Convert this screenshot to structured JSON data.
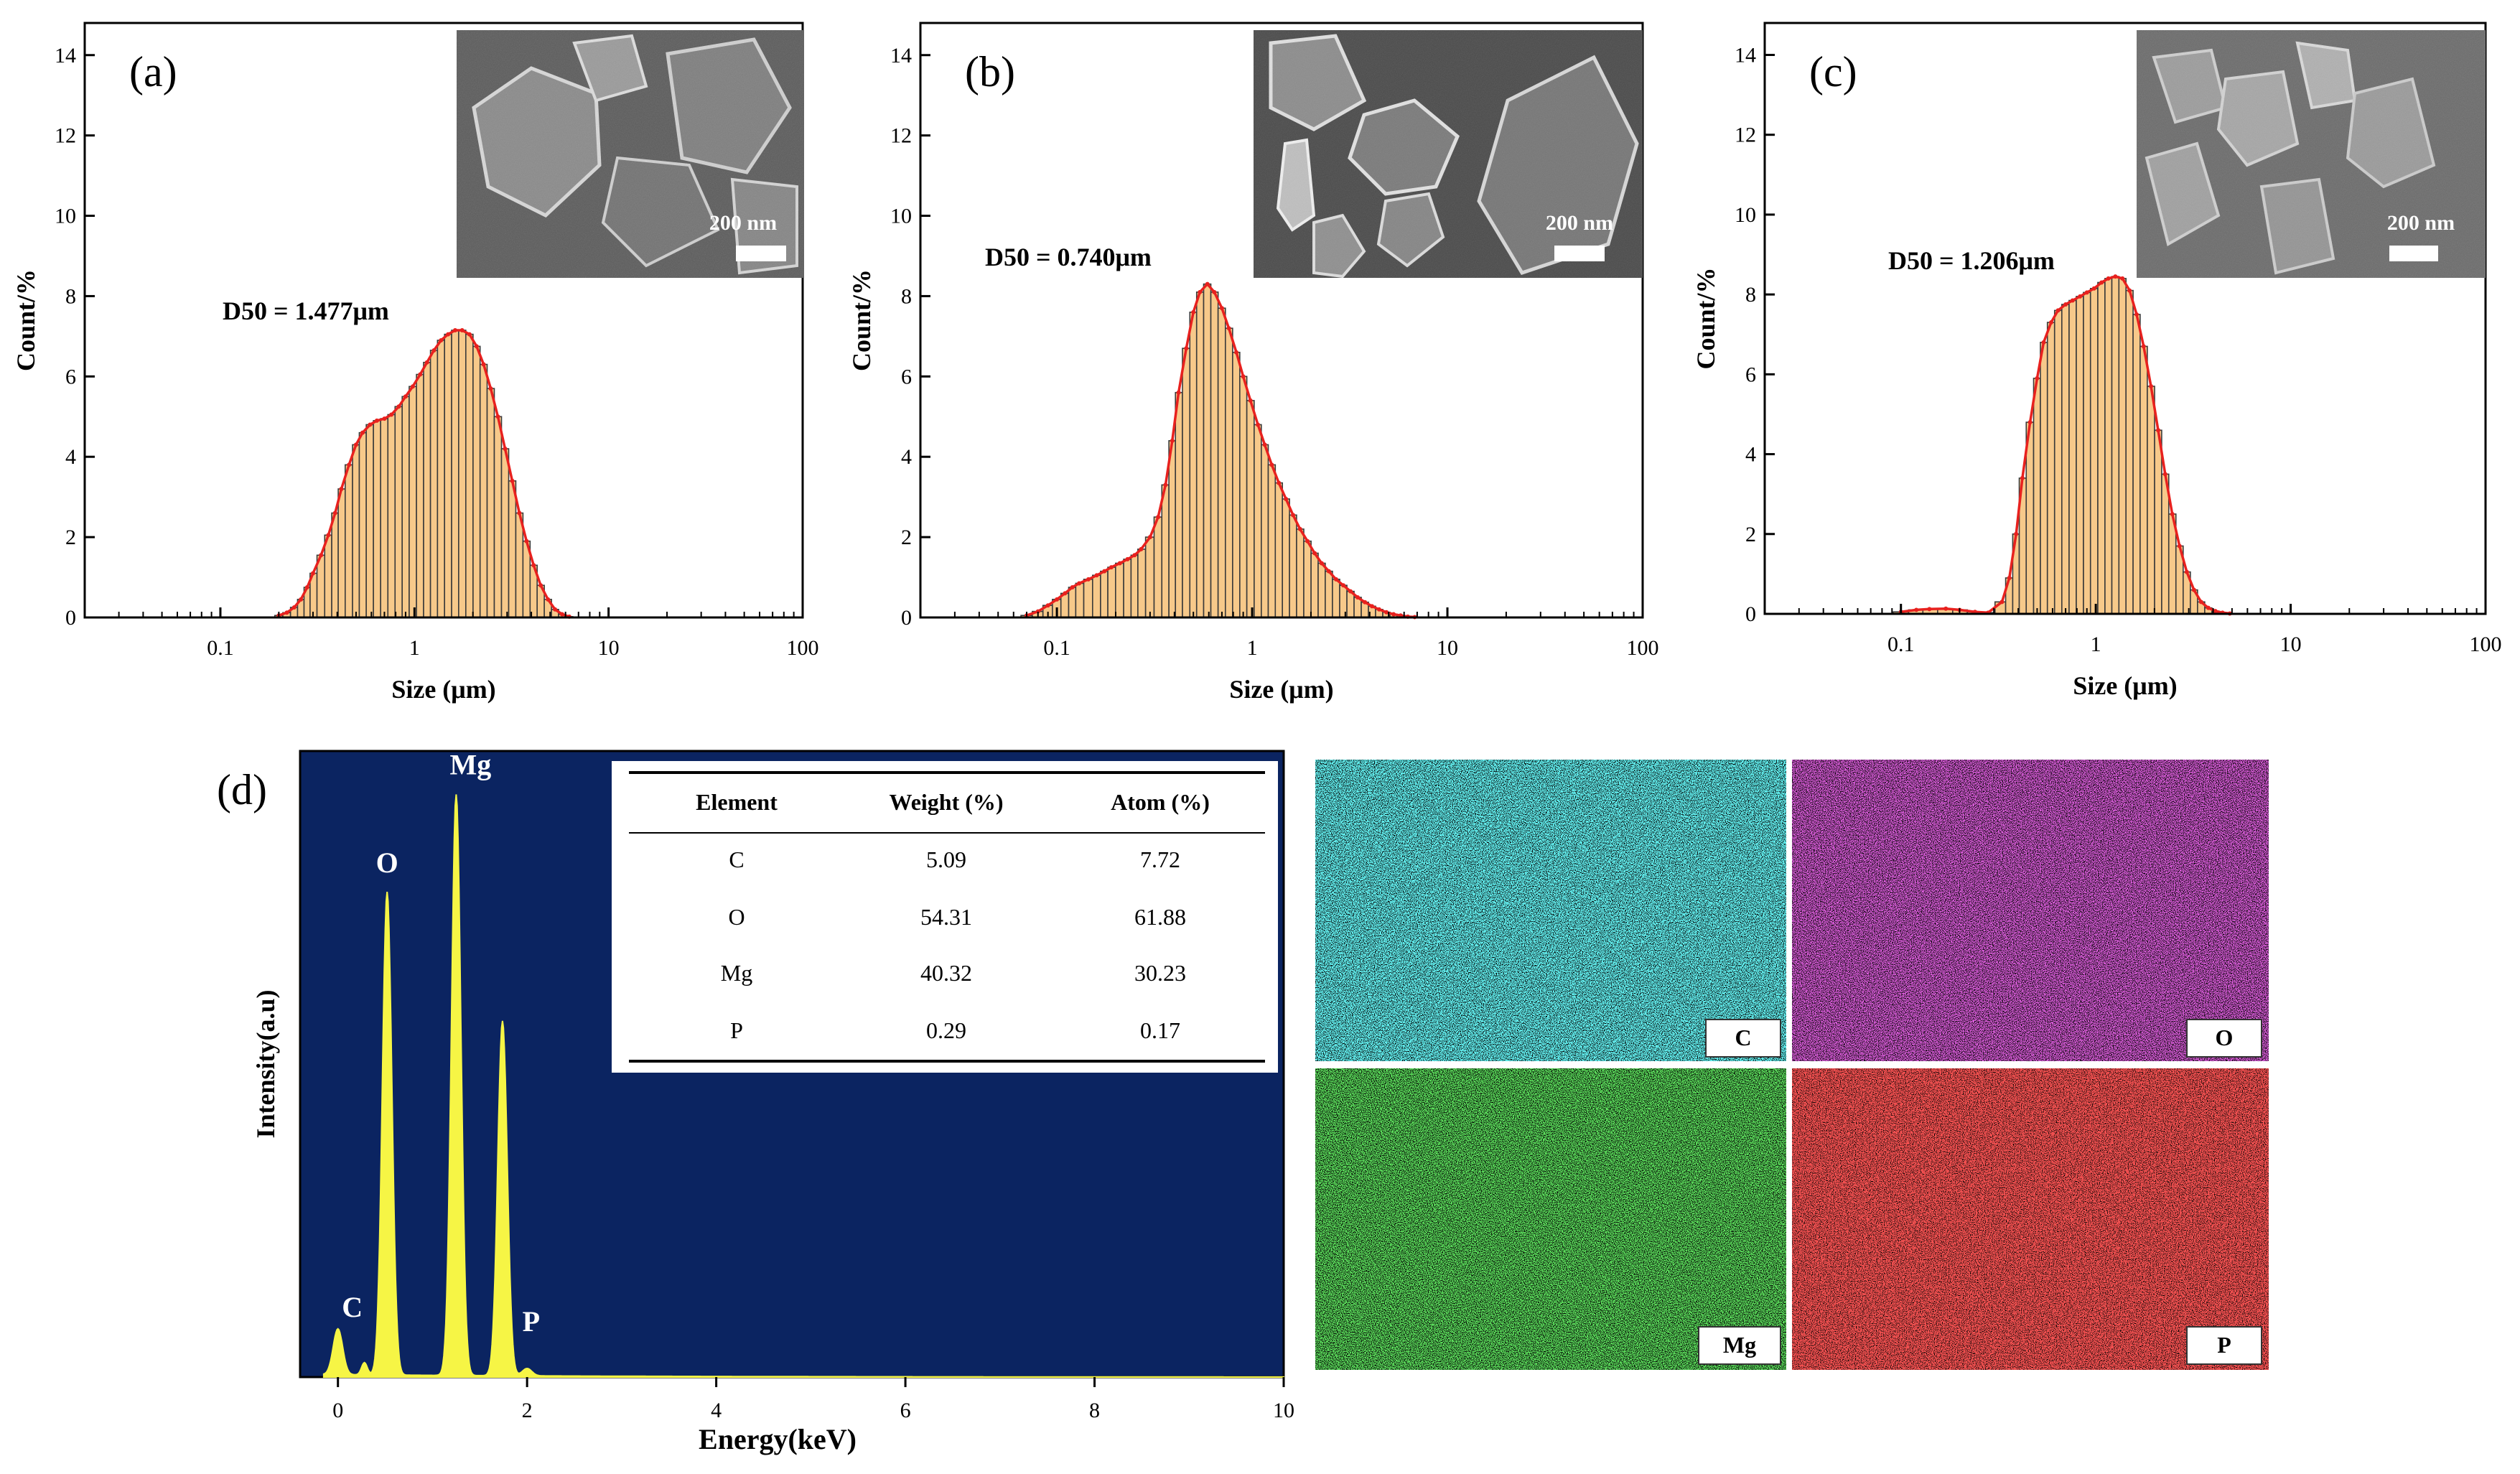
{
  "chart_data": [
    {
      "panel": "(a)",
      "type": "bar",
      "subtype": "histogram-with-fit-line",
      "xscale": "log",
      "xlim": [
        0.02,
        100
      ],
      "ylim": [
        0,
        14.8
      ],
      "xticks": [
        0.1,
        1,
        10,
        100
      ],
      "xtick_labels": [
        "0.1",
        "1",
        "10",
        "100"
      ],
      "yticks": [
        0,
        2,
        4,
        6,
        8,
        10,
        12,
        14
      ],
      "ytick_labels": [
        "0",
        "2",
        "4",
        "6",
        "8",
        "10",
        "12",
        "14"
      ],
      "xlabel": "Size (μm)",
      "ylabel": "Count/%",
      "annotation": "D50 = 1.477μm",
      "inset_scale_label": "200 nm",
      "bar_color": "#f7c98a",
      "line_color": "#e8211e",
      "x": [
        0.2,
        0.22,
        0.24,
        0.26,
        0.28,
        0.3,
        0.33,
        0.36,
        0.39,
        0.42,
        0.46,
        0.5,
        0.54,
        0.59,
        0.64,
        0.7,
        0.76,
        0.83,
        0.9,
        0.98,
        1.07,
        1.16,
        1.26,
        1.37,
        1.49,
        1.62,
        1.76,
        1.92,
        2.09,
        2.27,
        2.47,
        2.69,
        2.93,
        3.19,
        3.47,
        3.78,
        4.11,
        4.47,
        4.87,
        5.3,
        5.76,
        6.27
      ],
      "values": [
        0.05,
        0.12,
        0.25,
        0.45,
        0.75,
        1.1,
        1.55,
        2.05,
        2.6,
        3.2,
        3.8,
        4.3,
        4.6,
        4.8,
        4.9,
        4.95,
        5.05,
        5.25,
        5.5,
        5.75,
        6.05,
        6.35,
        6.65,
        6.9,
        7.05,
        7.15,
        7.15,
        7.05,
        6.75,
        6.3,
        5.7,
        5.0,
        4.2,
        3.4,
        2.6,
        1.9,
        1.3,
        0.8,
        0.45,
        0.2,
        0.08,
        0.02
      ]
    },
    {
      "panel": "(b)",
      "type": "bar",
      "subtype": "histogram-with-fit-line",
      "xscale": "log",
      "xlim": [
        0.02,
        100
      ],
      "ylim": [
        0,
        14.8
      ],
      "xticks": [
        0.1,
        1,
        10,
        100
      ],
      "xtick_labels": [
        "0.1",
        "1",
        "10",
        "100"
      ],
      "yticks": [
        0,
        2,
        4,
        6,
        8,
        10,
        12,
        14
      ],
      "ytick_labels": [
        "0",
        "2",
        "4",
        "6",
        "8",
        "10",
        "12",
        "14"
      ],
      "xlabel": "Size (μm)",
      "ylabel": "Count/%",
      "annotation": "D50 = 0.740μm",
      "inset_scale_label": "200 nm",
      "bar_color": "#f7c98a",
      "line_color": "#e8211e",
      "x": [
        0.07,
        0.08,
        0.09,
        0.1,
        0.11,
        0.12,
        0.13,
        0.145,
        0.16,
        0.175,
        0.19,
        0.21,
        0.23,
        0.25,
        0.27,
        0.3,
        0.33,
        0.36,
        0.39,
        0.42,
        0.46,
        0.5,
        0.54,
        0.59,
        0.64,
        0.7,
        0.76,
        0.83,
        0.9,
        0.98,
        1.07,
        1.16,
        1.26,
        1.37,
        1.49,
        1.62,
        1.76,
        1.92,
        2.09,
        2.27,
        2.47,
        2.69,
        2.93,
        3.19,
        3.47,
        3.78,
        4.11,
        4.47,
        4.87,
        5.3,
        5.76,
        6.27,
        6.8
      ],
      "values": [
        0.05,
        0.15,
        0.3,
        0.45,
        0.6,
        0.75,
        0.85,
        0.95,
        1.05,
        1.15,
        1.25,
        1.35,
        1.45,
        1.55,
        1.7,
        2.0,
        2.5,
        3.3,
        4.4,
        5.6,
        6.7,
        7.6,
        8.1,
        8.3,
        8.1,
        7.7,
        7.2,
        6.6,
        6.0,
        5.4,
        4.8,
        4.3,
        3.8,
        3.35,
        2.95,
        2.55,
        2.2,
        1.9,
        1.6,
        1.35,
        1.15,
        0.95,
        0.8,
        0.65,
        0.5,
        0.38,
        0.28,
        0.2,
        0.13,
        0.08,
        0.05,
        0.02,
        0.01
      ]
    },
    {
      "panel": "(c)",
      "type": "bar",
      "subtype": "histogram-with-fit-line",
      "xscale": "log",
      "xlim": [
        0.02,
        100
      ],
      "ylim": [
        0,
        14.8
      ],
      "xticks": [
        0.1,
        1,
        10,
        100
      ],
      "xtick_labels": [
        "0.1",
        "1",
        "10",
        "100"
      ],
      "yticks": [
        0,
        2,
        4,
        6,
        8,
        10,
        12,
        14
      ],
      "ytick_labels": [
        "0",
        "2",
        "4",
        "6",
        "8",
        "10",
        "12",
        "14"
      ],
      "xlabel": "Size (μm)",
      "ylabel": "Count/%",
      "annotation": "D50 = 1.206μm",
      "inset_scale_label": "200 nm",
      "bar_color": "#f7c98a",
      "line_color": "#e8211e",
      "x": [
        0.1,
        0.12,
        0.14,
        0.17,
        0.2,
        0.24,
        0.28,
        0.33,
        0.36,
        0.39,
        0.42,
        0.46,
        0.5,
        0.54,
        0.59,
        0.64,
        0.7,
        0.76,
        0.83,
        0.9,
        0.98,
        1.07,
        1.16,
        1.26,
        1.37,
        1.49,
        1.62,
        1.76,
        1.92,
        2.09,
        2.27,
        2.47,
        2.69,
        2.93,
        3.19,
        3.47,
        3.78,
        4.11,
        4.47,
        4.87
      ],
      "values": [
        0.05,
        0.1,
        0.12,
        0.13,
        0.1,
        0.05,
        0.03,
        0.3,
        0.9,
        2.0,
        3.4,
        4.8,
        5.9,
        6.8,
        7.3,
        7.6,
        7.75,
        7.85,
        7.95,
        8.05,
        8.15,
        8.3,
        8.4,
        8.45,
        8.4,
        8.1,
        7.5,
        6.7,
        5.7,
        4.6,
        3.5,
        2.5,
        1.7,
        1.05,
        0.6,
        0.3,
        0.15,
        0.07,
        0.03,
        0.01
      ]
    },
    {
      "panel": "(d)",
      "type": "line",
      "subtype": "EDS spectrum",
      "xlabel": "Energy(keV)",
      "ylabel": "Intensity(a.u)",
      "xlim": [
        -0.4,
        10
      ],
      "xticks": [
        0,
        2,
        4,
        6,
        8,
        10
      ],
      "xtick_labels": [
        "0",
        "2",
        "4",
        "6",
        "8",
        "10"
      ],
      "background_color": "#0b2461",
      "line_color": "#f6f545",
      "peaks": [
        {
          "label": "C",
          "energy": 0.0,
          "intensity": 0.075
        },
        {
          "label": "",
          "energy": 0.28,
          "intensity": 0.02
        },
        {
          "label": "O",
          "energy": 0.52,
          "intensity": 0.79
        },
        {
          "label": "Mg",
          "energy": 1.25,
          "intensity": 0.95
        },
        {
          "label": "P",
          "energy": 1.74,
          "intensity": 0.58
        },
        {
          "label": "",
          "energy": 2.0,
          "intensity": 0.012
        }
      ],
      "table": {
        "columns": [
          "Element",
          "Weight (%)",
          "Atom (%)"
        ],
        "rows": [
          [
            "C",
            "5.09",
            "7.72"
          ],
          [
            "O",
            "54.31",
            "61.88"
          ],
          [
            "Mg",
            "40.32",
            "30.23"
          ],
          [
            "P",
            "0.29",
            "0.17"
          ]
        ]
      }
    }
  ],
  "panel_labels": {
    "a": "(a)",
    "b": "(b)",
    "c": "(c)",
    "d": "(d)"
  },
  "maps": [
    {
      "label": "C",
      "color": "#1fd6d6",
      "density": "sparse"
    },
    {
      "label": "O",
      "color": "#c81ec8",
      "density": "dense"
    },
    {
      "label": "Mg",
      "color": "#1ed21e",
      "density": "dense"
    },
    {
      "label": "P",
      "color": "#e01616",
      "density": "medium"
    }
  ]
}
